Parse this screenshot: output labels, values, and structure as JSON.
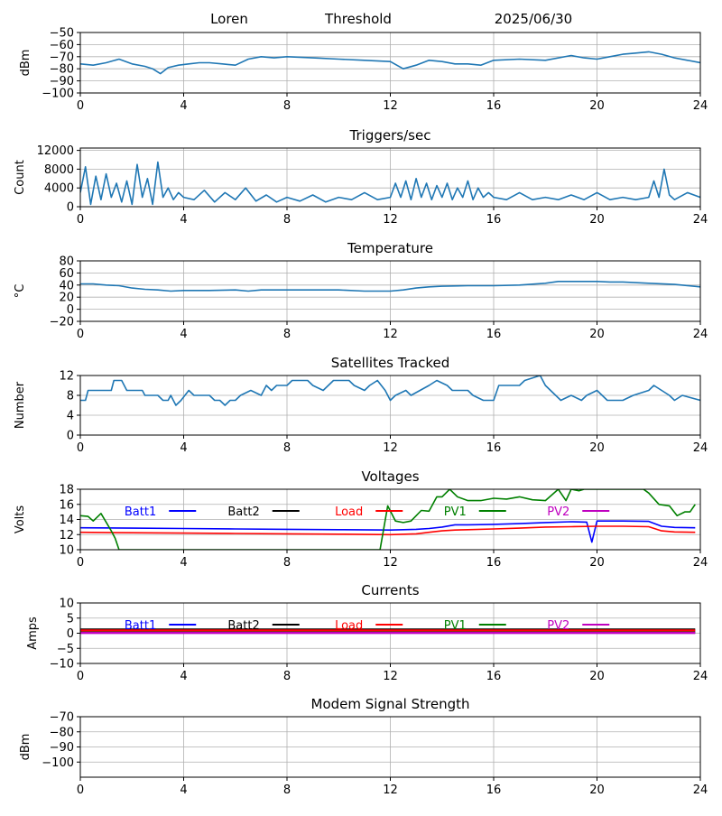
{
  "header": {
    "station": "Loren",
    "mode": "Threshold",
    "date": "2025/06/30"
  },
  "colors": {
    "default_series": "#1f77b4",
    "batt1": "#0000ff",
    "batt2": "#000000",
    "load": "#ff0000",
    "pv1": "#008000",
    "pv2": "#bf00bf",
    "grid": "#b0b0b0"
  },
  "chart_data": [
    {
      "id": "signal",
      "type": "line",
      "title": "",
      "ylabel": "dBm",
      "ylim": [
        -100,
        -50
      ],
      "yticks": [
        -50,
        -60,
        -70,
        -80,
        -90,
        -100
      ],
      "xlim": [
        0,
        24
      ],
      "xticks": [
        0,
        4,
        8,
        12,
        16,
        20,
        24
      ],
      "grid": true,
      "series": [
        {
          "color": "#1f77b4",
          "x": [
            0,
            0.5,
            1,
            1.5,
            2,
            2.5,
            2.8,
            3.1,
            3.4,
            3.8,
            4.2,
            4.6,
            5,
            5.5,
            6,
            6.5,
            7,
            7.5,
            8,
            9,
            10,
            11,
            12,
            12.5,
            13,
            13.5,
            14,
            14.5,
            15,
            15.5,
            16,
            17,
            18,
            19,
            19.5,
            20,
            20.5,
            21,
            21.5,
            22,
            22.5,
            23,
            23.5,
            24
          ],
          "y": [
            -76,
            -77,
            -75,
            -72,
            -76,
            -78,
            -80,
            -84,
            -79,
            -77,
            -76,
            -75,
            -75,
            -76,
            -77,
            -72,
            -70,
            -71,
            -70,
            -71,
            -72,
            -73,
            -74,
            -80,
            -77,
            -73,
            -74,
            -76,
            -76,
            -77,
            -73,
            -72,
            -73,
            -69,
            -71,
            -72,
            -70,
            -68,
            -67,
            -66,
            -68,
            -71,
            -73,
            -75
          ]
        }
      ]
    },
    {
      "id": "triggers",
      "type": "line",
      "title": "Triggers/sec",
      "ylabel": "Count",
      "ylim": [
        0,
        12500
      ],
      "yticks": [
        0,
        4000,
        8000,
        12000
      ],
      "xlim": [
        0,
        24
      ],
      "xticks": [
        0,
        4,
        8,
        12,
        16,
        20,
        24
      ],
      "grid": true,
      "series": [
        {
          "color": "#1f77b4",
          "x": [
            0,
            0.2,
            0.4,
            0.6,
            0.8,
            1,
            1.2,
            1.4,
            1.6,
            1.8,
            2,
            2.2,
            2.4,
            2.6,
            2.8,
            3,
            3.2,
            3.4,
            3.6,
            3.8,
            4,
            4.4,
            4.8,
            5.2,
            5.6,
            6,
            6.4,
            6.8,
            7.2,
            7.6,
            8,
            8.5,
            9,
            9.5,
            10,
            10.5,
            11,
            11.5,
            12,
            12.2,
            12.4,
            12.6,
            12.8,
            13,
            13.2,
            13.4,
            13.6,
            13.8,
            14,
            14.2,
            14.4,
            14.6,
            14.8,
            15,
            15.2,
            15.4,
            15.6,
            15.8,
            16,
            16.5,
            17,
            17.5,
            18,
            18.5,
            19,
            19.5,
            20,
            20.5,
            21,
            21.5,
            22,
            22.2,
            22.4,
            22.6,
            22.8,
            23,
            23.5,
            24
          ],
          "y": [
            3000,
            8500,
            500,
            6500,
            1500,
            7000,
            2000,
            5000,
            1000,
            5500,
            500,
            9000,
            2000,
            6000,
            500,
            9500,
            2000,
            4000,
            1500,
            3000,
            2000,
            1500,
            3500,
            1000,
            3000,
            1500,
            4000,
            1200,
            2500,
            1000,
            2000,
            1200,
            2500,
            1000,
            2000,
            1500,
            3000,
            1500,
            2000,
            5000,
            2000,
            5500,
            1500,
            6000,
            2000,
            5000,
            1500,
            4500,
            2000,
            5000,
            1500,
            4000,
            2000,
            5500,
            1500,
            4000,
            2000,
            3000,
            2000,
            1500,
            3000,
            1500,
            2000,
            1500,
            2500,
            1500,
            3000,
            1500,
            2000,
            1500,
            2000,
            5500,
            2000,
            8000,
            2500,
            1500,
            3000,
            2000
          ]
        }
      ]
    },
    {
      "id": "temperature",
      "type": "line",
      "title": "Temperature",
      "ylabel": "°C",
      "ylim": [
        -20,
        80
      ],
      "yticks": [
        -20,
        0,
        20,
        40,
        60,
        80
      ],
      "xlim": [
        0,
        24
      ],
      "xticks": [
        0,
        4,
        8,
        12,
        16,
        20,
        24
      ],
      "grid": true,
      "series": [
        {
          "color": "#1f77b4",
          "x": [
            0,
            0.5,
            1,
            1.5,
            2,
            2.5,
            3,
            3.5,
            4,
            5,
            6,
            6.5,
            7,
            8,
            9,
            10,
            11,
            12,
            12.5,
            13,
            13.5,
            14,
            15,
            16,
            17,
            18,
            18.5,
            19,
            20,
            20.5,
            21,
            22,
            23,
            24
          ],
          "y": [
            42,
            42,
            40,
            39,
            35,
            33,
            32,
            30,
            31,
            31,
            32,
            30,
            32,
            32,
            32,
            32,
            30,
            30,
            32,
            35,
            37,
            38,
            39,
            39,
            40,
            43,
            46,
            46,
            46,
            45,
            45,
            43,
            41,
            37
          ]
        }
      ]
    },
    {
      "id": "satellites",
      "type": "line",
      "title": "Satellites Tracked",
      "ylabel": "Number",
      "ylim": [
        0,
        12
      ],
      "yticks": [
        0,
        4,
        8,
        12
      ],
      "xlim": [
        0,
        24
      ],
      "xticks": [
        0,
        4,
        8,
        12,
        16,
        20,
        24
      ],
      "grid": true,
      "series": [
        {
          "color": "#1f77b4",
          "x": [
            0,
            0.2,
            0.3,
            1.2,
            1.3,
            1.6,
            1.8,
            2.4,
            2.5,
            3,
            3.2,
            3.4,
            3.5,
            3.7,
            3.9,
            4.2,
            4.4,
            5,
            5.2,
            5.4,
            5.6,
            5.8,
            6,
            6.2,
            6.6,
            7,
            7.2,
            7.4,
            7.6,
            8,
            8.2,
            8.8,
            9,
            9.4,
            9.8,
            10.4,
            10.6,
            11,
            11.2,
            11.5,
            11.8,
            12,
            12.2,
            12.6,
            12.8,
            13.5,
            13.8,
            14.2,
            14.4,
            15,
            15.2,
            15.6,
            16,
            16.2,
            17,
            17.2,
            17.8,
            18,
            18.4,
            18.6,
            19,
            19.4,
            19.6,
            20,
            20.2,
            20.4,
            21,
            21.4,
            22,
            22.2,
            22.5,
            22.8,
            23,
            23.3,
            24
          ],
          "y": [
            7,
            7,
            9,
            9,
            11,
            11,
            9,
            9,
            8,
            8,
            7,
            7,
            8,
            6,
            7,
            9,
            8,
            8,
            7,
            7,
            6,
            7,
            7,
            8,
            9,
            8,
            10,
            9,
            10,
            10,
            11,
            11,
            10,
            9,
            11,
            11,
            10,
            9,
            10,
            11,
            9,
            7,
            8,
            9,
            8,
            10,
            11,
            10,
            9,
            9,
            8,
            7,
            7,
            10,
            10,
            11,
            12,
            10,
            8,
            7,
            8,
            7,
            8,
            9,
            8,
            7,
            7,
            8,
            9,
            10,
            9,
            8,
            7,
            8,
            7
          ]
        }
      ]
    },
    {
      "id": "voltages",
      "type": "line",
      "title": "Voltages",
      "ylabel": "Volts",
      "ylim": [
        10,
        18
      ],
      "yticks": [
        10,
        12,
        14,
        16,
        18
      ],
      "xlim": [
        0,
        24
      ],
      "xticks": [
        0,
        4,
        8,
        12,
        16,
        20,
        24
      ],
      "grid": true,
      "legend": "top",
      "series": [
        {
          "name": "Batt1",
          "color": "#0000ff",
          "x": [
            0,
            2,
            4,
            6,
            8,
            10,
            12,
            13,
            13.5,
            14,
            14.5,
            15,
            16,
            17,
            18,
            19,
            19.6,
            19.8,
            20,
            21,
            22,
            22.5,
            23,
            23.8
          ],
          "y": [
            12.9,
            12.85,
            12.8,
            12.75,
            12.7,
            12.65,
            12.6,
            12.7,
            12.8,
            13.0,
            13.3,
            13.3,
            13.35,
            13.45,
            13.6,
            13.7,
            13.65,
            11.0,
            13.8,
            13.8,
            13.75,
            13.1,
            12.95,
            12.9
          ]
        },
        {
          "name": "Batt2",
          "color": "#000000",
          "x": [],
          "y": []
        },
        {
          "name": "Load",
          "color": "#ff0000",
          "x": [
            0,
            2,
            4,
            6,
            8,
            10,
            12,
            13,
            13.5,
            14,
            14.5,
            15,
            16,
            17,
            18,
            19,
            20,
            21,
            22,
            22.5,
            23,
            23.8
          ],
          "y": [
            12.3,
            12.25,
            12.2,
            12.15,
            12.1,
            12.05,
            12.0,
            12.1,
            12.3,
            12.5,
            12.6,
            12.65,
            12.75,
            12.85,
            13.0,
            13.05,
            13.1,
            13.1,
            13.05,
            12.5,
            12.35,
            12.3
          ]
        },
        {
          "name": "PV1",
          "color": "#008000",
          "x": [
            0,
            0.3,
            0.5,
            0.8,
            1.2,
            1.35,
            1.5,
            11.6,
            11.9,
            12.2,
            12.5,
            12.8,
            13.2,
            13.5,
            13.8,
            14.0,
            14.3,
            14.6,
            15,
            15.5,
            16,
            16.5,
            17,
            17.5,
            18,
            18.5,
            18.8,
            19.0,
            19.3,
            19.5,
            21.8,
            22,
            22.4,
            22.8,
            23.1,
            23.4,
            23.6,
            23.8
          ],
          "y": [
            14.5,
            14.4,
            13.8,
            14.8,
            12.5,
            11.5,
            10.0,
            10.0,
            15.8,
            13.8,
            13.6,
            13.8,
            15.2,
            15.1,
            17.0,
            17.0,
            18.0,
            17.0,
            16.5,
            16.5,
            16.8,
            16.7,
            17.0,
            16.6,
            16.5,
            18.0,
            16.5,
            18.0,
            17.8,
            18.0,
            18.0,
            17.5,
            16.0,
            15.8,
            14.5,
            15.0,
            15.0,
            16.0
          ]
        },
        {
          "name": "PV2",
          "color": "#bf00bf",
          "x": [],
          "y": []
        }
      ]
    },
    {
      "id": "currents",
      "type": "line",
      "title": "Currents",
      "ylabel": "Amps",
      "ylim": [
        -10,
        10
      ],
      "yticks": [
        -10,
        -5,
        0,
        5,
        10
      ],
      "xlim": [
        0,
        24
      ],
      "xticks": [
        0,
        4,
        8,
        12,
        16,
        20,
        24
      ],
      "grid": true,
      "legend": "top",
      "series": [
        {
          "name": "Batt1",
          "color": "#0000ff",
          "x": [
            0,
            23.8
          ],
          "y": [
            0.4,
            0.4
          ]
        },
        {
          "name": "Batt2",
          "color": "#000000",
          "x": [
            0,
            23.8
          ],
          "y": [
            1.2,
            1.2
          ]
        },
        {
          "name": "Load",
          "color": "#ff0000",
          "x": [
            0,
            23.8
          ],
          "y": [
            0.9,
            0.9
          ]
        },
        {
          "name": "PV1",
          "color": "#008000",
          "x": [
            0,
            23.8
          ],
          "y": [
            0.2,
            0.2
          ]
        },
        {
          "name": "PV2",
          "color": "#bf00bf",
          "x": [
            0,
            23.8
          ],
          "y": [
            0.1,
            0.1
          ]
        }
      ]
    },
    {
      "id": "modem",
      "type": "line",
      "title": "Modem Signal Strength",
      "ylabel": "dBm",
      "ylim": [
        -110,
        -70
      ],
      "yticks": [
        -70,
        -80,
        -90,
        -100
      ],
      "xlim": [
        0,
        24
      ],
      "xticks": [
        0,
        4,
        8,
        12,
        16,
        20,
        24
      ],
      "grid": true,
      "series": []
    }
  ]
}
